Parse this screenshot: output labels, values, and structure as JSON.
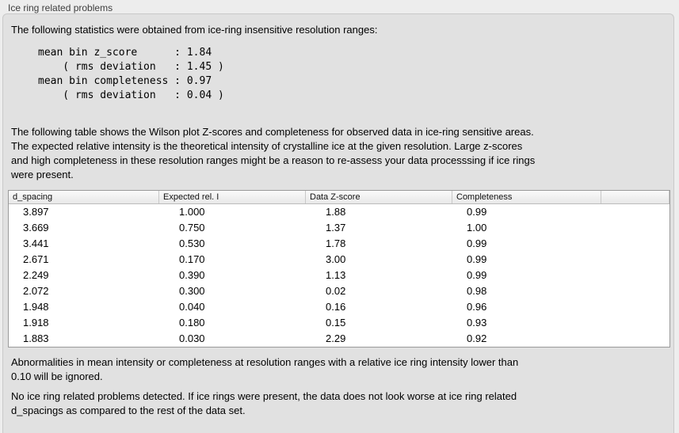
{
  "panel": {
    "title": "Ice ring related problems"
  },
  "colors": {
    "outer_background": "#ededed",
    "panel_background": "#e1e1e1",
    "table_border": "#9a9a9a",
    "text": "#000000"
  },
  "stats": {
    "intro": "The following statistics were obtained from ice-ring insensitive resolution ranges:",
    "block": "mean bin z_score      : 1.84\n    ( rms deviation   : 1.45 )\nmean bin completeness : 0.97\n    ( rms deviation   : 0.04 )",
    "values": {
      "mean_bin_z_score": 1.84,
      "z_score_rms_deviation": 1.45,
      "mean_bin_completeness": 0.97,
      "completeness_rms_deviation": 0.04
    }
  },
  "table_description": "The following table shows the Wilson plot Z-scores and completeness for observed data in ice-ring sensitive areas.\nThe expected relative intensity is the theoretical intensity of crystalline ice at the given resolution. Large z-scores\nand high completeness in these resolution ranges might be a reason to re-assess your data processsing if ice rings\nwere present.",
  "table": {
    "columns": [
      "d_spacing",
      "Expected rel. I",
      "Data Z-score",
      "Completeness",
      ""
    ],
    "rows": [
      [
        "3.897",
        "1.000",
        "1.88",
        "0.99"
      ],
      [
        "3.669",
        "0.750",
        "1.37",
        "1.00"
      ],
      [
        "3.441",
        "0.530",
        "1.78",
        "0.99"
      ],
      [
        "2.671",
        "0.170",
        "3.00",
        "0.99"
      ],
      [
        "2.249",
        "0.390",
        "1.13",
        "0.99"
      ],
      [
        "2.072",
        "0.300",
        "0.02",
        "0.98"
      ],
      [
        "1.948",
        "0.040",
        "0.16",
        "0.96"
      ],
      [
        "1.918",
        "0.180",
        "0.15",
        "0.93"
      ],
      [
        "1.883",
        "0.030",
        "2.29",
        "0.92"
      ]
    ]
  },
  "notes": {
    "ignore_note": "Abnormalities in mean intensity or completeness at resolution ranges with a relative ice ring intensity lower than\n0.10 will be ignored.",
    "conclusion": "No ice ring related problems detected. If ice rings were present, the data does not look worse at ice ring related\nd_spacings as compared to the rest of the data set."
  }
}
